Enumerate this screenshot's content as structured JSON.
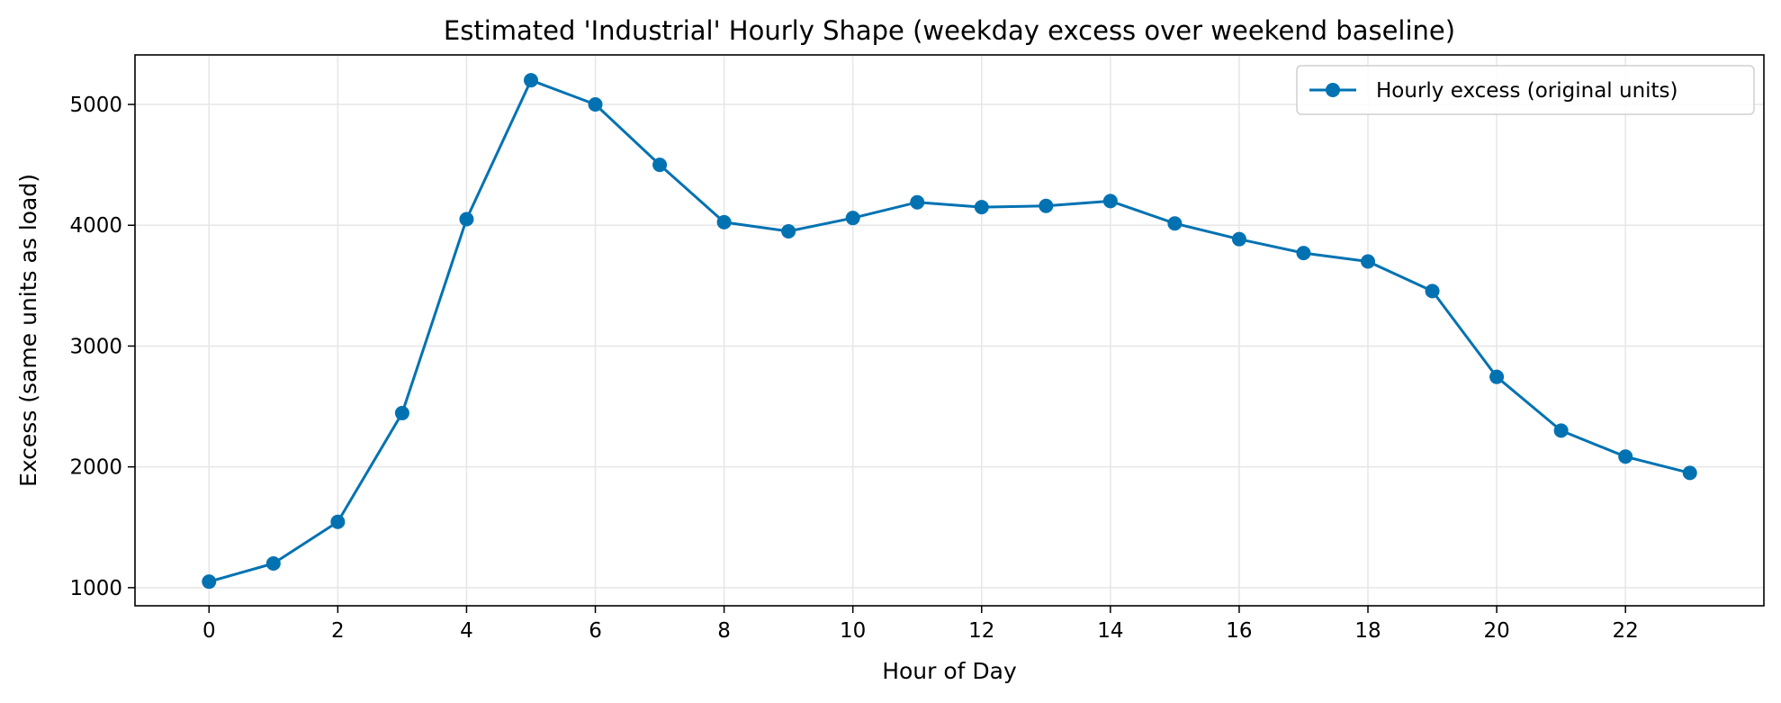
{
  "chart_data": {
    "type": "line",
    "title": "Estimated 'Industrial' Hourly Shape (weekday excess over weekend baseline)",
    "xlabel": "Hour of Day",
    "ylabel": "Excess (same units as load)",
    "xlim": [
      -1.15,
      24.15
    ],
    "ylim": [
      850,
      5410
    ],
    "xticks": [
      0,
      2,
      4,
      6,
      8,
      10,
      12,
      14,
      16,
      18,
      20,
      22
    ],
    "yticks": [
      1000,
      2000,
      3000,
      4000,
      5000
    ],
    "grid": true,
    "legend_position": "top-right",
    "series": [
      {
        "name": "Hourly excess (original units)",
        "color": "#0072B2",
        "marker": "circle",
        "x": [
          0,
          1,
          2,
          3,
          4,
          5,
          6,
          7,
          8,
          9,
          10,
          11,
          12,
          13,
          14,
          15,
          16,
          17,
          18,
          19,
          20,
          21,
          22,
          23
        ],
        "y": [
          1050,
          1200,
          1545,
          2445,
          4050,
          5200,
          5000,
          4500,
          4025,
          3950,
          4060,
          4190,
          4150,
          4160,
          4200,
          4015,
          3885,
          3770,
          3700,
          3455,
          2745,
          2300,
          2085,
          1950
        ]
      }
    ]
  }
}
